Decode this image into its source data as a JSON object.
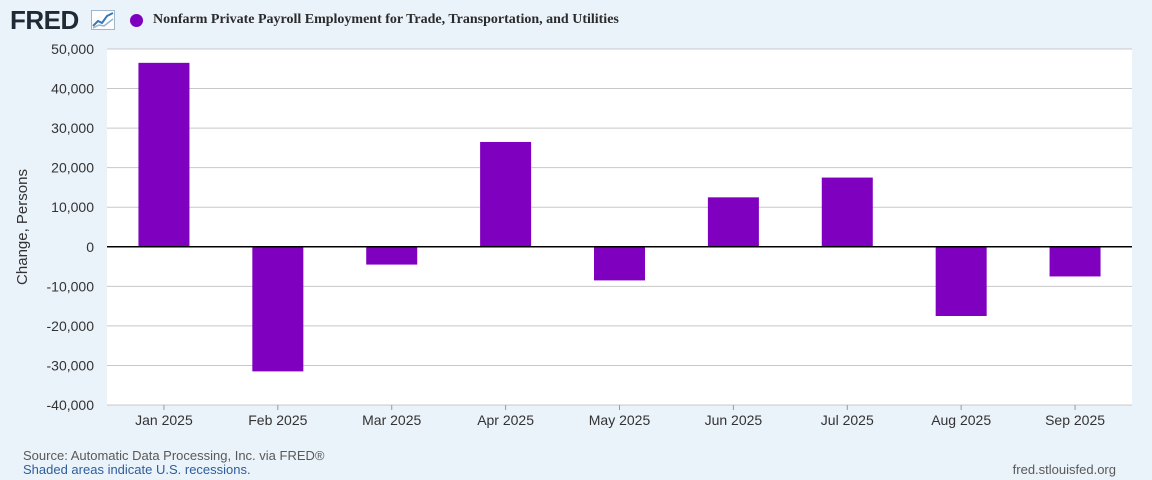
{
  "header": {
    "logo": "FRED",
    "logo_icon": "trend-line-icon"
  },
  "colors": {
    "bar": "#8000c0",
    "background": "#eaf2fa",
    "plot": "#ffffff",
    "grid": "#c8c8c8",
    "zero_line": "#000000"
  },
  "chart_data": {
    "type": "bar",
    "title": "Nonfarm Private Payroll Employment for Trade, Transportation, and Utilities",
    "ylabel": "Change, Persons",
    "xlabel": "",
    "ylim": [
      -40000,
      50000
    ],
    "yticks": [
      50000,
      40000,
      30000,
      20000,
      10000,
      0,
      -10000,
      -20000,
      -30000,
      -40000
    ],
    "ytick_labels": [
      "50,000",
      "40,000",
      "30,000",
      "20,000",
      "10,000",
      "0",
      "-10,000",
      "-20,000",
      "-30,000",
      "-40,000"
    ],
    "categories": [
      "Jan 2025",
      "Feb 2025",
      "Mar 2025",
      "Apr 2025",
      "May 2025",
      "Jun 2025",
      "Jul 2025",
      "Aug 2025",
      "Sep 2025"
    ],
    "values": [
      46500,
      -31500,
      -4500,
      26500,
      -8500,
      12500,
      17500,
      -17500,
      -7500
    ],
    "grid": true,
    "legend": "top-left"
  },
  "footer": {
    "source": "Source: Automatic Data Processing, Inc. via FRED®",
    "shaded": "Shaded areas indicate U.S. recessions.",
    "site": "fred.stlouisfed.org"
  }
}
